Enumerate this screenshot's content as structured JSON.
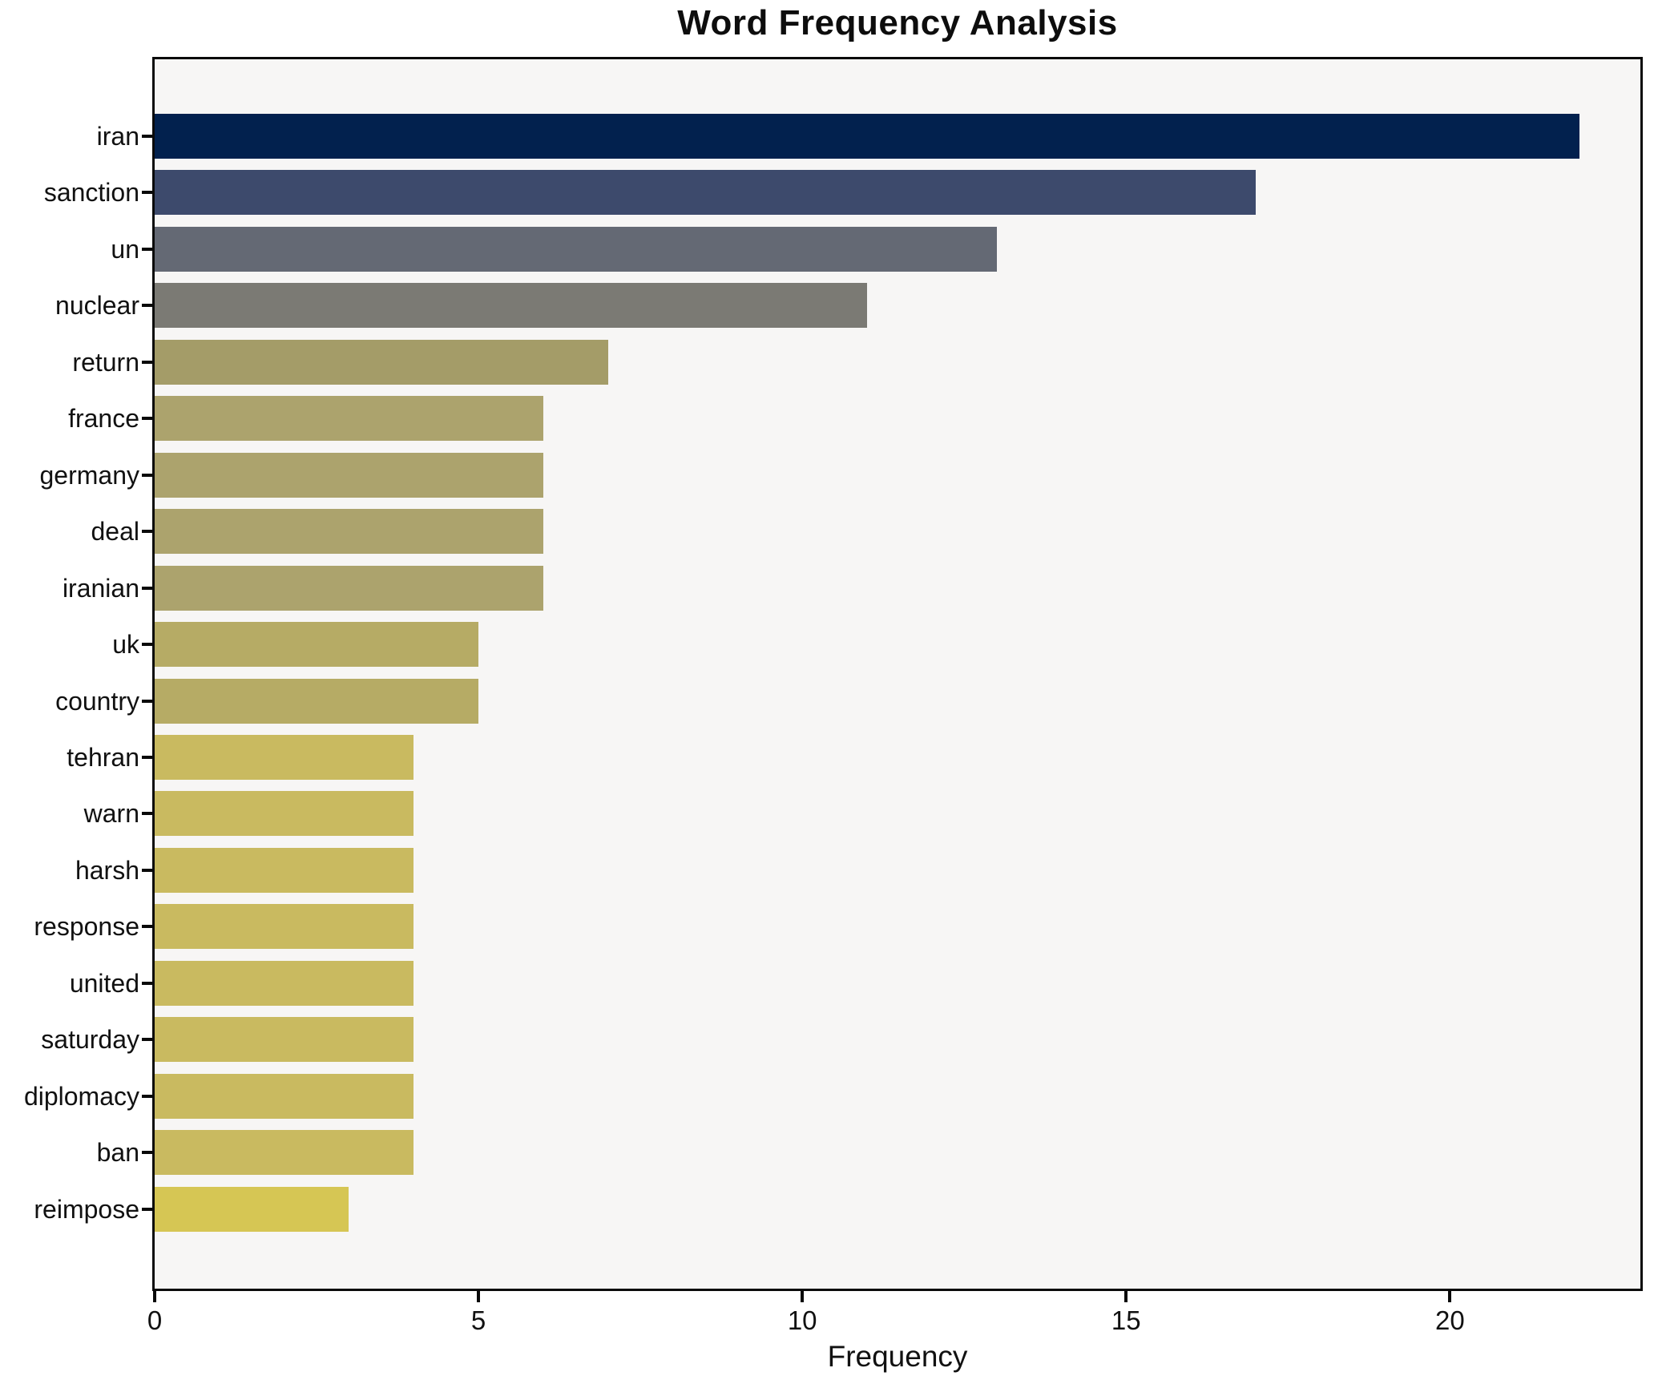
{
  "chart_data": {
    "type": "bar",
    "orientation": "horizontal",
    "title": "Word Frequency Analysis",
    "xlabel": "Frequency",
    "ylabel": "",
    "categories": [
      "iran",
      "sanction",
      "un",
      "nuclear",
      "return",
      "france",
      "germany",
      "deal",
      "iranian",
      "uk",
      "country",
      "tehran",
      "warn",
      "harsh",
      "response",
      "united",
      "saturday",
      "diplomacy",
      "ban",
      "reimpose"
    ],
    "values": [
      22,
      17,
      13,
      11,
      7,
      6,
      6,
      6,
      6,
      5,
      5,
      4,
      4,
      4,
      4,
      4,
      4,
      4,
      4,
      3
    ],
    "bar_colors": [
      "#02214e",
      "#3d4a6c",
      "#646974",
      "#7b7a74",
      "#a49c68",
      "#aca36d",
      "#aca36d",
      "#aca36d",
      "#aca36d",
      "#b6ab65",
      "#b6ab65",
      "#c9ba60",
      "#c9ba60",
      "#c9ba60",
      "#c9ba60",
      "#c9ba60",
      "#c9ba60",
      "#c9ba60",
      "#c9ba60",
      "#d6c654"
    ],
    "xticks": [
      0,
      5,
      10,
      15,
      20
    ],
    "xlim": [
      0,
      22.94
    ],
    "grid": false,
    "legend": null,
    "colors": {
      "plot_background": "#f7f6f5",
      "figure_background": "#ffffff",
      "spine": "#0a0a0a",
      "text": "#111111"
    }
  }
}
